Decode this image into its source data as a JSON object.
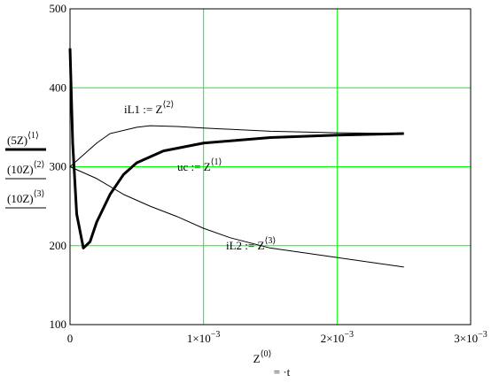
{
  "chart_data": {
    "type": "line",
    "xlim": [
      0,
      0.003
    ],
    "ylim": [
      100,
      500
    ],
    "xticks": [
      0,
      {
        "value": 0.001,
        "label": "1×10",
        "exponent": "−3"
      },
      {
        "value": 0.002,
        "label": "2×10",
        "exponent": "−3"
      },
      {
        "value": 0.003,
        "label": "3×10",
        "exponent": "−3"
      }
    ],
    "yticks": [
      100,
      200,
      300,
      400,
      500
    ],
    "grid": true,
    "grid_color": "#00ff00",
    "xlabel": {
      "text": "Z",
      "index": "⟨0⟩",
      "suffix": "= ·t"
    },
    "series": [
      {
        "name": "(5Z)",
        "index": "⟨1⟩",
        "color": "#000000",
        "width": 3,
        "annotation": {
          "text": "uc := Z",
          "index": "⟨1⟩"
        },
        "x": [
          0,
          2e-05,
          5e-05,
          0.0001,
          0.00015,
          0.0002,
          0.0003,
          0.0004,
          0.0005,
          0.0007,
          0.001,
          0.0015,
          0.002,
          0.0025
        ],
        "values": [
          450,
          330,
          240,
          197,
          205,
          230,
          265,
          290,
          305,
          320,
          330,
          337,
          340,
          342
        ]
      },
      {
        "name": "(10Z)",
        "index": "⟨2⟩",
        "color": "#000000",
        "width": 1,
        "annotation": {
          "text": "iL1 := Z",
          "index": "⟨2⟩"
        },
        "x": [
          0,
          0.0001,
          0.0002,
          0.0003,
          0.0005,
          0.0006,
          0.0008,
          0.001,
          0.0015,
          0.002,
          0.0025
        ],
        "values": [
          300,
          315,
          330,
          342,
          350,
          352,
          351,
          349,
          345,
          343,
          342
        ]
      },
      {
        "name": "(10Z)",
        "index": "⟨3⟩",
        "color": "#000000",
        "width": 1,
        "annotation": {
          "text": "iL2 := Z",
          "index": "⟨3⟩"
        },
        "x": [
          0,
          0.0002,
          0.0004,
          0.0006,
          0.0008,
          0.001,
          0.0012,
          0.0015,
          0.002,
          0.0025
        ],
        "values": [
          300,
          285,
          265,
          250,
          237,
          222,
          210,
          197,
          185,
          173
        ]
      }
    ]
  }
}
